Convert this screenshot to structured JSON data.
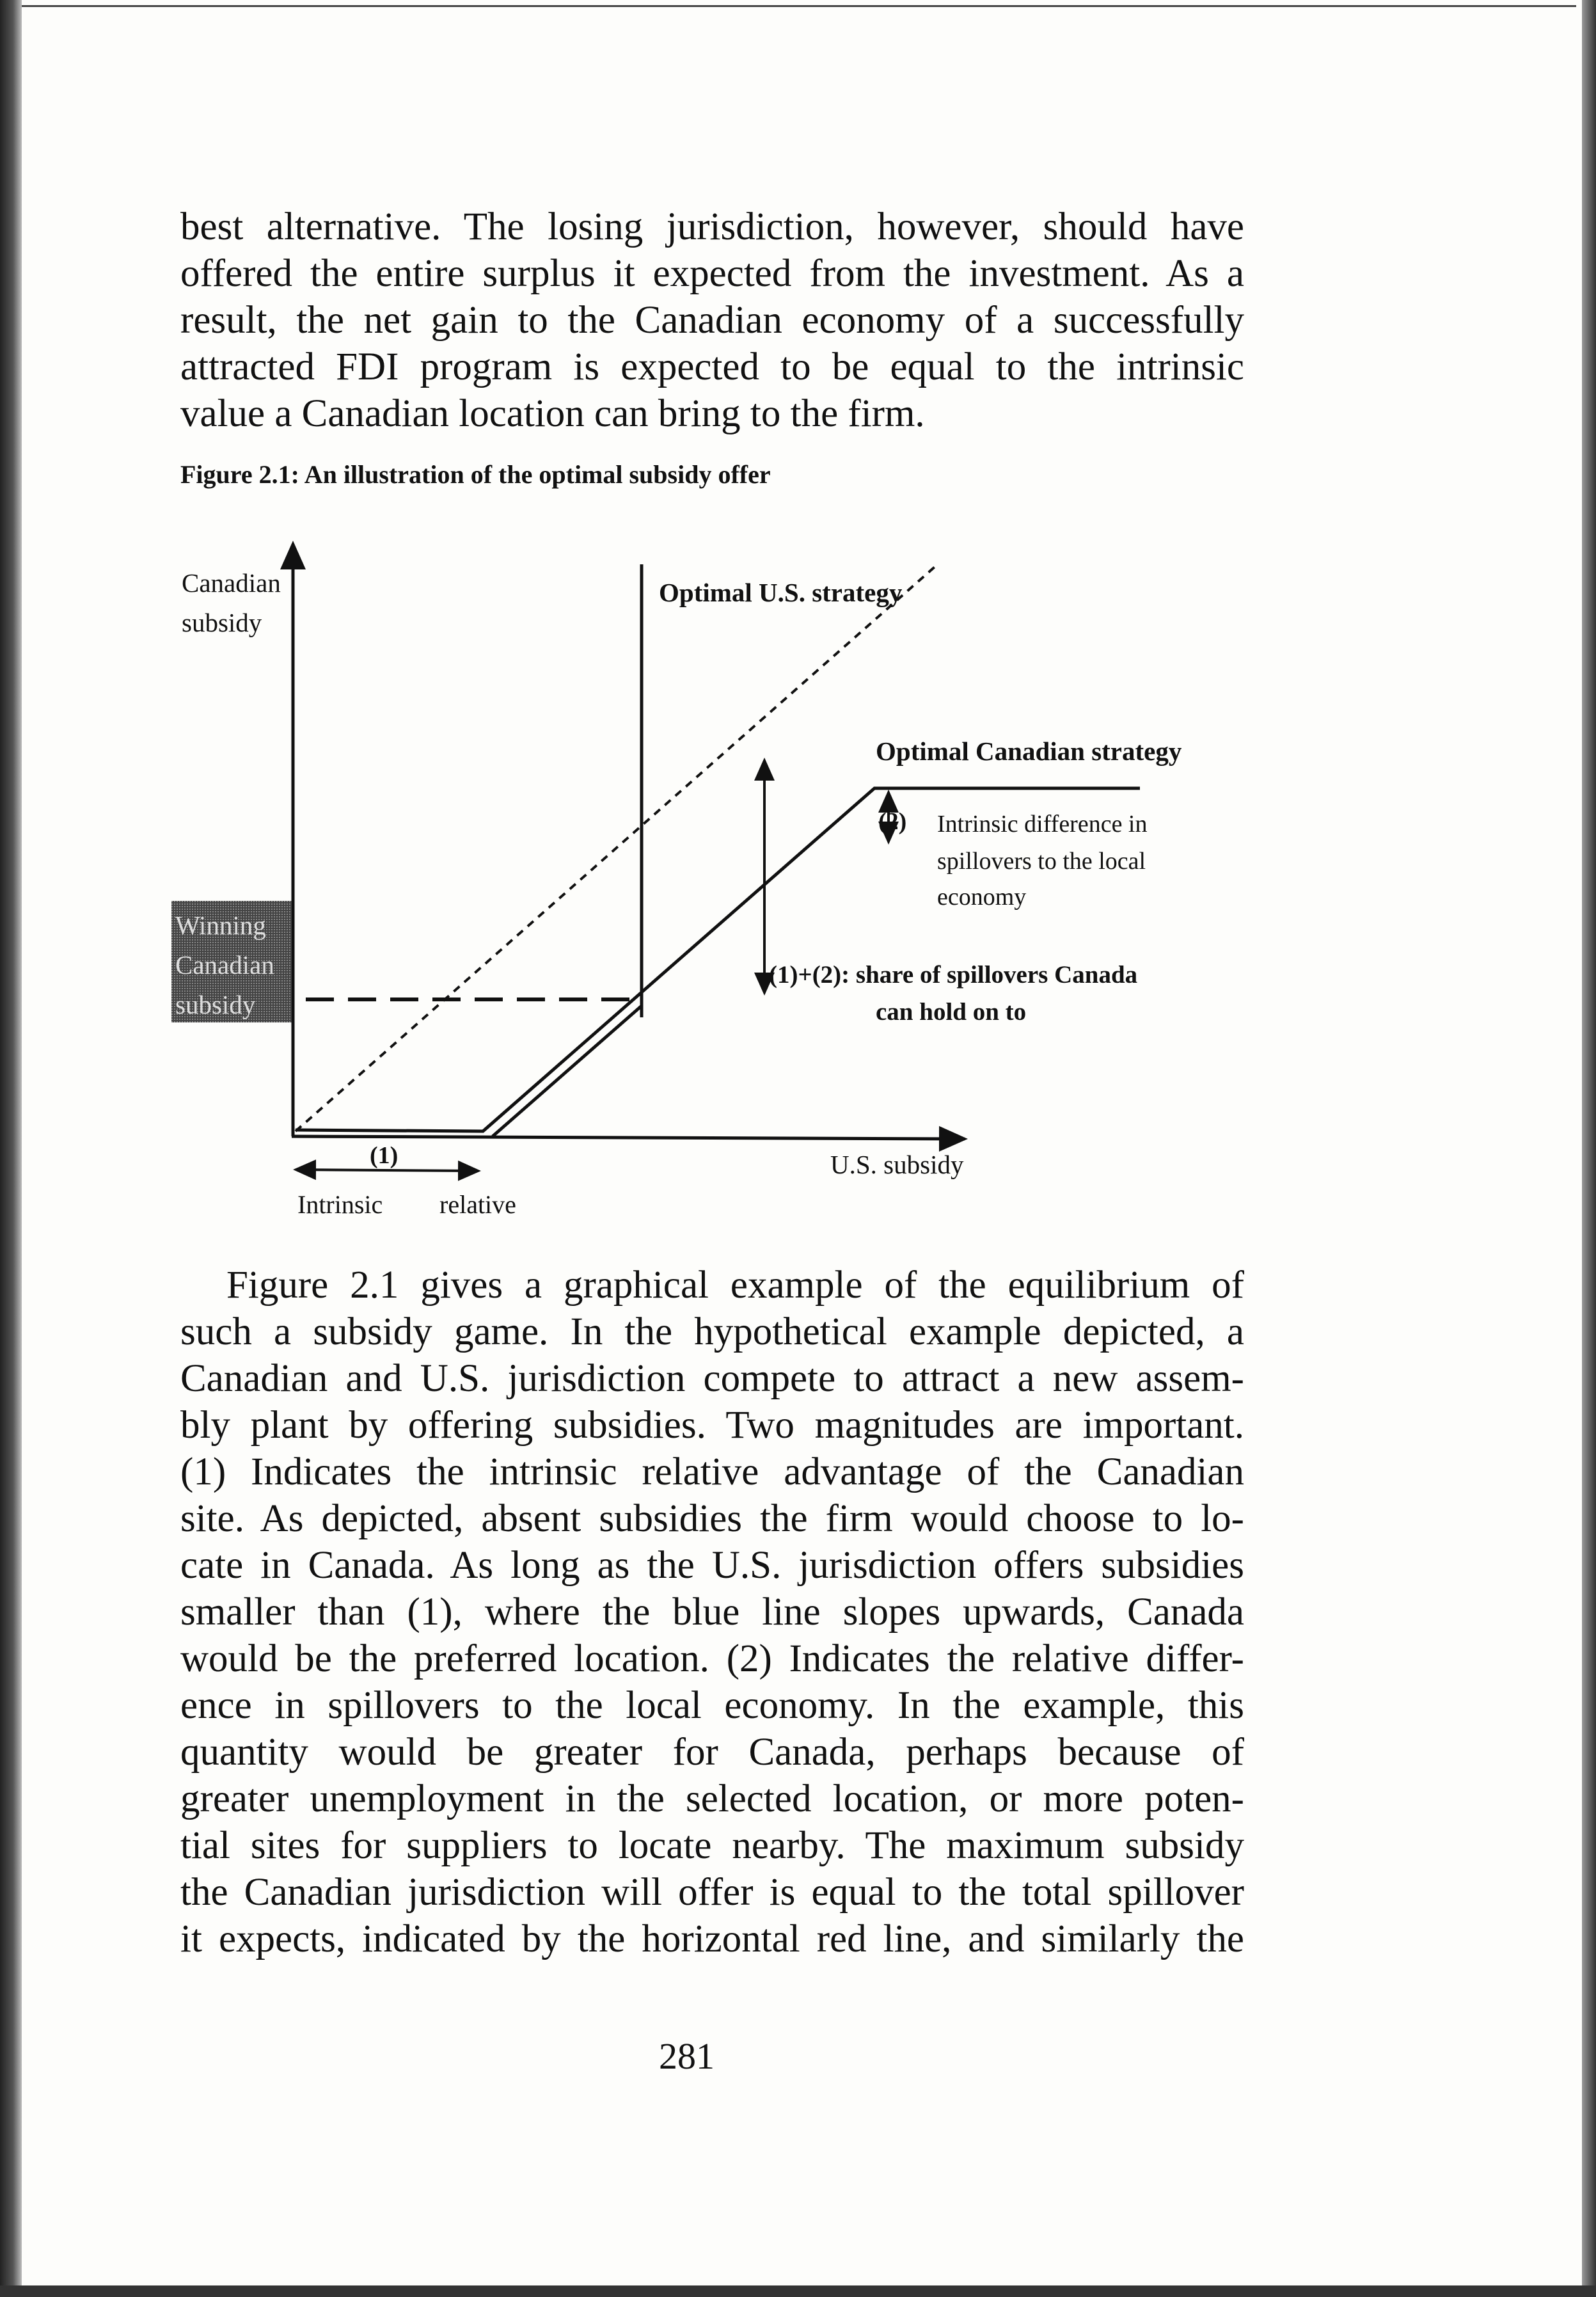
{
  "paragraph1": [
    "best alternative. The losing jurisdiction, however, should have",
    "offered the entire surplus it expected from the investment. As a",
    "result, the net gain to the Canadian economy of a successfully",
    "attracted FDI program is expected to be equal to the intrinsic",
    "value a Canadian location can bring to the firm."
  ],
  "figure": {
    "caption": "Figure 2.1: An illustration of the optimal subsidy offer",
    "y_axis_label_line1": "Canadian",
    "y_axis_label_line2": "subsidy",
    "x_axis_label": "U.S. subsidy",
    "us_strategy_label": "Optimal U.S. strategy",
    "canadian_strategy_label": "Optimal Canadian strategy",
    "label_2": "(2)",
    "label_2_text": [
      "Intrinsic difference in",
      "spillovers to the local",
      "economy"
    ],
    "label_1_2": [
      "(1)+(2): share of spillovers Canada",
      "can hold on to"
    ],
    "label_1": "(1)",
    "label_1_text_left": "Intrinsic",
    "label_1_text_right": "relative",
    "winning_box": [
      "Winning",
      "Canadian",
      "subsidy"
    ]
  },
  "paragraph2": [
    "Figure 2.1 gives a graphical example of the equilibrium of",
    "such a subsidy game. In the hypothetical example depicted, a",
    "Canadian and U.S. jurisdiction compete to attract a new assem-",
    "bly plant by offering subsidies. Two magnitudes are important.",
    "(1) Indicates the intrinsic relative advantage of the Canadian",
    "site. As depicted, absent subsidies the firm would choose to lo-",
    "cate in Canada. As long as the U.S. jurisdiction offers subsidies",
    "smaller than (1), where the blue line slopes upwards, Canada",
    "would be the preferred location. (2) Indicates the relative differ-",
    "ence in spillovers to the local economy. In the example, this",
    "quantity would be greater for Canada, perhaps because of",
    "greater unemployment in the selected location, or more poten-",
    "tial sites for suppliers to locate nearby. The maximum subsidy",
    "the Canadian jurisdiction will offer is equal to the total spillover",
    "it expects, indicated by the horizontal red line, and similarly the"
  ],
  "page_number": "281"
}
